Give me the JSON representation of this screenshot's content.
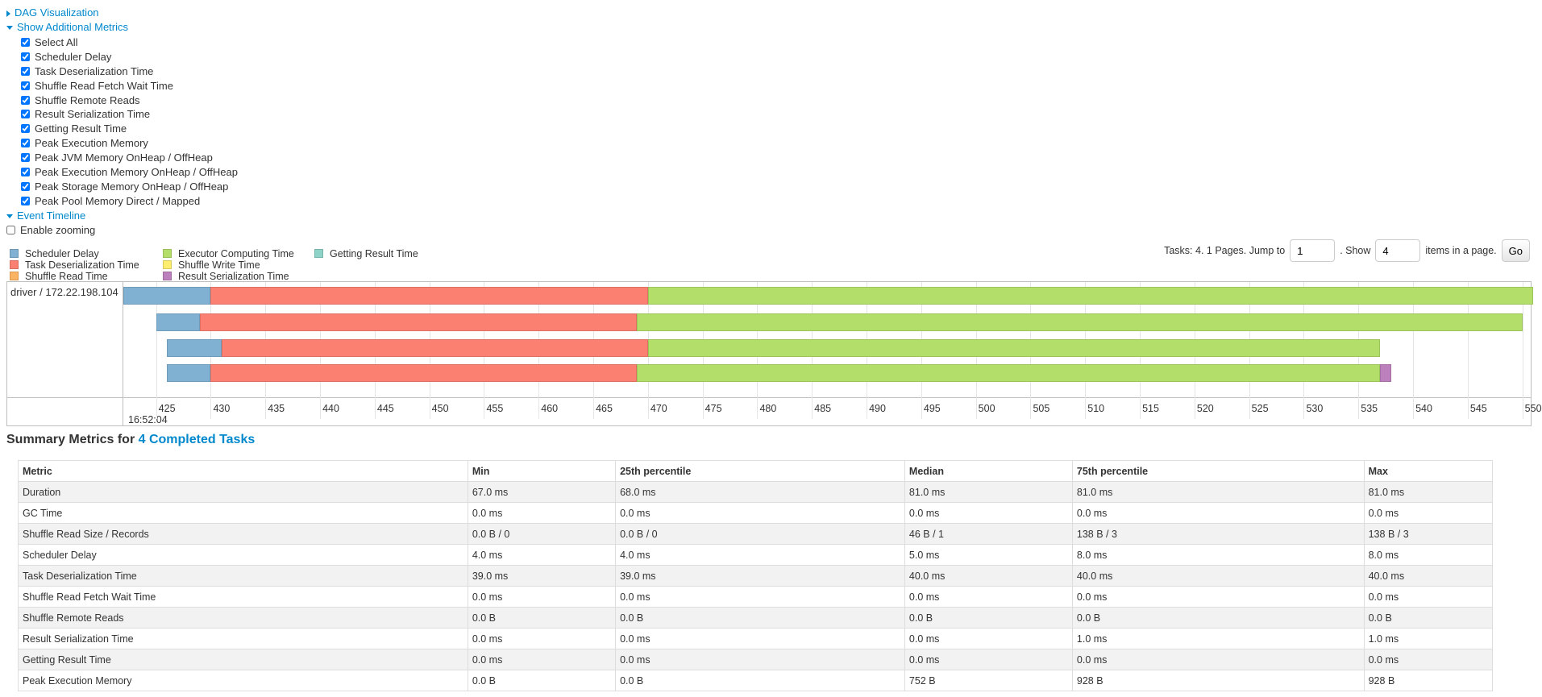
{
  "sections": {
    "dag": "DAG Visualization",
    "additional_metrics": "Show Additional Metrics",
    "event_timeline": "Event Timeline"
  },
  "metric_options": [
    {
      "label": "Select All",
      "checked": true
    },
    {
      "label": "Scheduler Delay",
      "checked": true
    },
    {
      "label": "Task Deserialization Time",
      "checked": true
    },
    {
      "label": "Shuffle Read Fetch Wait Time",
      "checked": true
    },
    {
      "label": "Shuffle Remote Reads",
      "checked": true
    },
    {
      "label": "Result Serialization Time",
      "checked": true
    },
    {
      "label": "Getting Result Time",
      "checked": true
    },
    {
      "label": "Peak Execution Memory",
      "checked": true
    },
    {
      "label": "Peak JVM Memory OnHeap / OffHeap",
      "checked": true
    },
    {
      "label": "Peak Execution Memory OnHeap / OffHeap",
      "checked": true
    },
    {
      "label": "Peak Storage Memory OnHeap / OffHeap",
      "checked": true
    },
    {
      "label": "Peak Pool Memory Direct / Mapped",
      "checked": true
    }
  ],
  "enable_zooming": {
    "label": "Enable zooming",
    "checked": false
  },
  "legend": [
    {
      "label": "Scheduler Delay",
      "color": "#80B1D3"
    },
    {
      "label": "Task Deserialization Time",
      "color": "#FB8072"
    },
    {
      "label": "Shuffle Read Time",
      "color": "#FDB462"
    },
    {
      "label": "Executor Computing Time",
      "color": "#B3DE69"
    },
    {
      "label": "Shuffle Write Time",
      "color": "#FFED6F"
    },
    {
      "label": "Result Serialization Time",
      "color": "#BC80BD"
    },
    {
      "label": "Getting Result Time",
      "color": "#8DD3C7"
    }
  ],
  "pager": {
    "text_before": "Tasks: 4. 1 Pages. Jump to",
    "jump_value": "1",
    "text_show": ". Show",
    "show_value": "4",
    "text_after": "items in a page.",
    "go": "Go"
  },
  "chart_data": {
    "type": "timeline",
    "group": "driver / 172.22.198.104",
    "date_label": "16:52:04",
    "x_range": [
      422,
      551
    ],
    "ticks": [
      "425",
      "430",
      "435",
      "440",
      "445",
      "450",
      "455",
      "460",
      "465",
      "470",
      "475",
      "480",
      "485",
      "490",
      "495",
      "500",
      "505",
      "510",
      "515",
      "520",
      "525",
      "530",
      "535",
      "540",
      "545",
      "550"
    ],
    "tasks": [
      {
        "segments": [
          {
            "phase": "Scheduler Delay",
            "start": 422,
            "end": 430
          },
          {
            "phase": "Task Deserialization Time",
            "start": 430,
            "end": 470
          },
          {
            "phase": "Executor Computing Time",
            "start": 470,
            "end": 551
          }
        ]
      },
      {
        "segments": [
          {
            "phase": "Scheduler Delay",
            "start": 425,
            "end": 429
          },
          {
            "phase": "Task Deserialization Time",
            "start": 429,
            "end": 469
          },
          {
            "phase": "Executor Computing Time",
            "start": 469,
            "end": 550
          }
        ]
      },
      {
        "segments": [
          {
            "phase": "Scheduler Delay",
            "start": 426,
            "end": 431
          },
          {
            "phase": "Task Deserialization Time",
            "start": 431,
            "end": 470
          },
          {
            "phase": "Executor Computing Time",
            "start": 470,
            "end": 537
          }
        ]
      },
      {
        "segments": [
          {
            "phase": "Scheduler Delay",
            "start": 426,
            "end": 430
          },
          {
            "phase": "Task Deserialization Time",
            "start": 430,
            "end": 469
          },
          {
            "phase": "Executor Computing Time",
            "start": 469,
            "end": 537
          },
          {
            "phase": "Result Serialization Time",
            "start": 537,
            "end": 538
          }
        ]
      }
    ]
  },
  "summary": {
    "title": "Summary Metrics for ",
    "link": "4 Completed Tasks",
    "headers": [
      "Metric",
      "Min",
      "25th percentile",
      "Median",
      "75th percentile",
      "Max"
    ],
    "rows": [
      [
        "Duration",
        "67.0 ms",
        "68.0 ms",
        "81.0 ms",
        "81.0 ms",
        "81.0 ms"
      ],
      [
        "GC Time",
        "0.0 ms",
        "0.0 ms",
        "0.0 ms",
        "0.0 ms",
        "0.0 ms"
      ],
      [
        "Shuffle Read Size / Records",
        "0.0 B / 0",
        "0.0 B / 0",
        "46 B / 1",
        "138 B / 3",
        "138 B / 3"
      ],
      [
        "Scheduler Delay",
        "4.0 ms",
        "4.0 ms",
        "5.0 ms",
        "8.0 ms",
        "8.0 ms"
      ],
      [
        "Task Deserialization Time",
        "39.0 ms",
        "39.0 ms",
        "40.0 ms",
        "40.0 ms",
        "40.0 ms"
      ],
      [
        "Shuffle Read Fetch Wait Time",
        "0.0 ms",
        "0.0 ms",
        "0.0 ms",
        "0.0 ms",
        "0.0 ms"
      ],
      [
        "Shuffle Remote Reads",
        "0.0 B",
        "0.0 B",
        "0.0 B",
        "0.0 B",
        "0.0 B"
      ],
      [
        "Result Serialization Time",
        "0.0 ms",
        "0.0 ms",
        "0.0 ms",
        "1.0 ms",
        "1.0 ms"
      ],
      [
        "Getting Result Time",
        "0.0 ms",
        "0.0 ms",
        "0.0 ms",
        "0.0 ms",
        "0.0 ms"
      ],
      [
        "Peak Execution Memory",
        "0.0 B",
        "0.0 B",
        "752 B",
        "928 B",
        "928 B"
      ]
    ]
  }
}
